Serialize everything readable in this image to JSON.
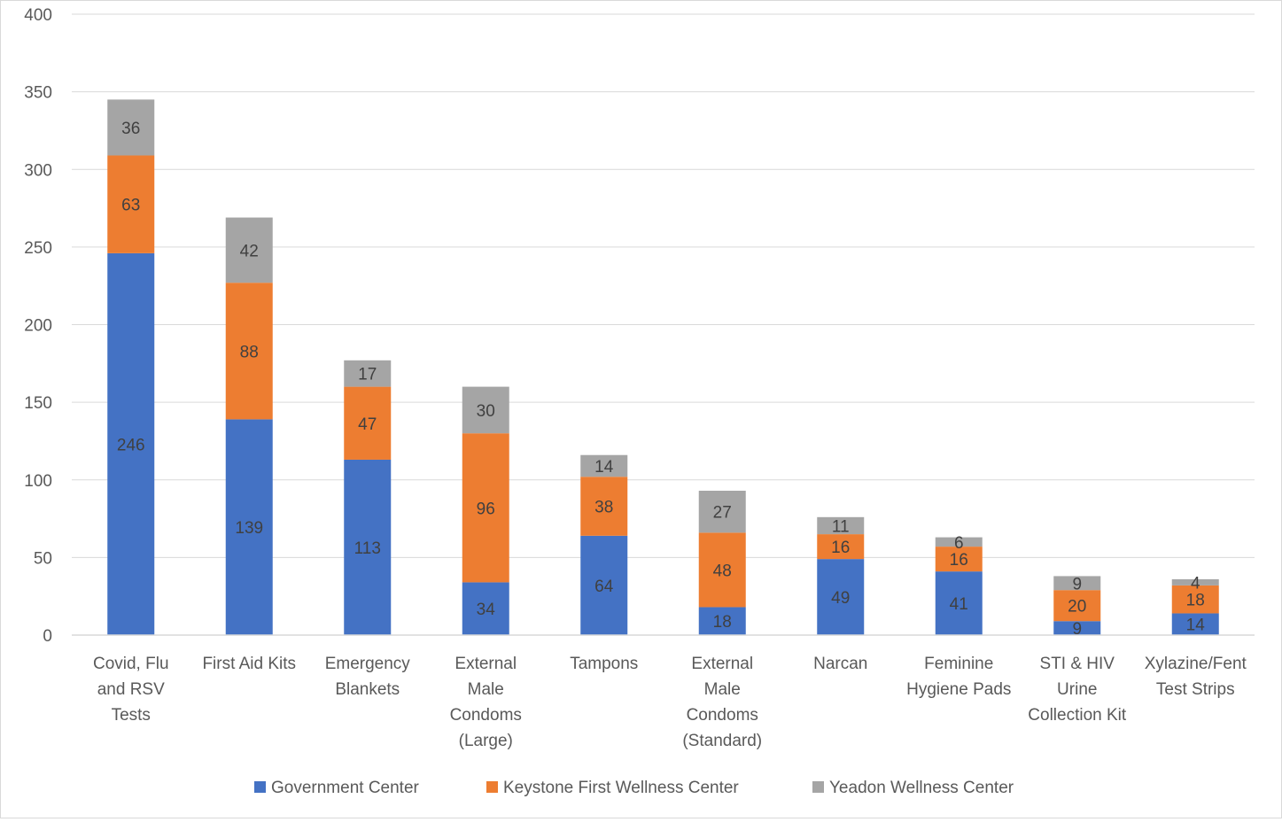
{
  "chart_data": {
    "type": "bar",
    "stacked": true,
    "title": "",
    "xlabel": "",
    "ylabel": "",
    "ylim": [
      0,
      400
    ],
    "yticks": [
      0,
      50,
      100,
      150,
      200,
      250,
      300,
      350,
      400
    ],
    "grid": true,
    "legend_position": "bottom",
    "categories": [
      [
        "Covid, Flu",
        "and RSV",
        "Tests"
      ],
      [
        "First Aid Kits"
      ],
      [
        "Emergency",
        "Blankets"
      ],
      [
        "External",
        "Male",
        "Condoms",
        "(Large)"
      ],
      [
        "Tampons"
      ],
      [
        "External",
        "Male",
        "Condoms",
        "(Standard)"
      ],
      [
        "Narcan"
      ],
      [
        "Feminine",
        "Hygiene Pads"
      ],
      [
        "STI & HIV",
        "Urine",
        "Collection Kit"
      ],
      [
        "Xylazine/Fent",
        "Test Strips"
      ]
    ],
    "series": [
      {
        "name": "Government Center",
        "color": "#4472c4",
        "values": [
          246,
          139,
          113,
          34,
          64,
          18,
          49,
          41,
          9,
          14
        ]
      },
      {
        "name": "Keystone First Wellness Center",
        "color": "#ed7d31",
        "values": [
          63,
          88,
          47,
          96,
          38,
          48,
          16,
          16,
          20,
          18
        ]
      },
      {
        "name": "Yeadon Wellness Center",
        "color": "#a5a5a5",
        "values": [
          36,
          42,
          17,
          30,
          14,
          27,
          11,
          6,
          9,
          4
        ]
      }
    ]
  }
}
